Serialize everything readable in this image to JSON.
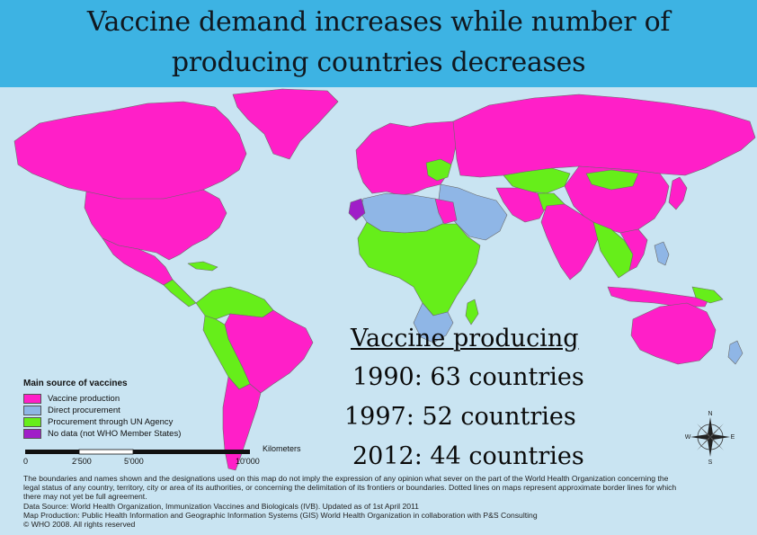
{
  "header": {
    "title_line1": "Vaccine demand increases while number of",
    "title_line2": "producing countries decreases",
    "background": "#3db3e3"
  },
  "colors": {
    "ocean": "#c9e4f2",
    "vaccine_production": "#ff1fc8",
    "direct_procurement": "#8fb6e6",
    "un_procurement": "#66ee1a",
    "no_data": "#a01ec8",
    "borders": "#6a6a6a"
  },
  "stats": {
    "title": "Vaccine producing",
    "y1990": "1990: 63 countries",
    "y1997": "1997: 52 countries",
    "y2012": "2012: 44 countries"
  },
  "legend": {
    "title": "Main source of vaccines",
    "items": [
      {
        "label": "Vaccine production",
        "color": "#ff1fc8"
      },
      {
        "label": "Direct procurement",
        "color": "#8fb6e6"
      },
      {
        "label": "Procurement through UN Agency",
        "color": "#66ee1a"
      },
      {
        "label": "No data (not WHO Member States)",
        "color": "#a01ec8"
      }
    ]
  },
  "scale": {
    "unit": "Kilometers",
    "ticks": [
      "0",
      "2'500",
      "5'000",
      "10'000"
    ]
  },
  "compass": {
    "icon": "compass-rose-icon",
    "n": "N",
    "s": "S",
    "e": "E",
    "w": "W"
  },
  "notes": {
    "line1": "The boundaries and names shown and the designations used on this map do not imply the expression of any opinion what sever on the part of the World Health Organization concerning the",
    "line2": "legal status of any country, territory, city or area of its authorities, or concerning the delimitation of its frontiers or boundaries. Dotted lines on maps represent approximate border lines for which",
    "line3": "there may not yet be full agreement.",
    "line4": "Data Source: World Health Organization, Immunization Vaccines and Biologicals (IVB). Updated as of 1st April 2011",
    "line5": "Map Production: Public Health Information and Geographic Information Systems (GIS) World Health Organization in collaboration with P&S Consulting",
    "line6": "© WHO 2008. All rights reserved"
  }
}
